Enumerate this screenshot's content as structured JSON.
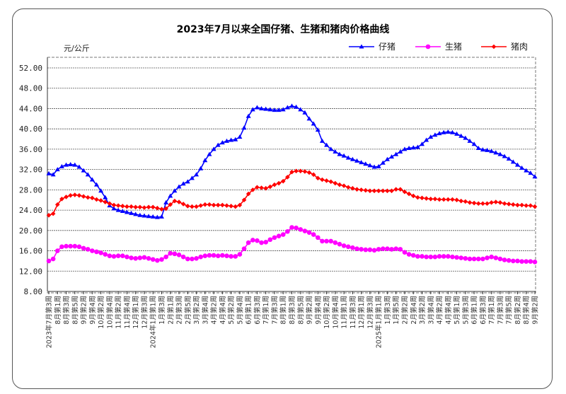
{
  "chart_data": {
    "type": "line",
    "title": "2023年7月以来全国仔猪、生猪和猪肉价格曲线",
    "ylabel": "元/公斤",
    "xlabel": "",
    "ylim": [
      8,
      52
    ],
    "yticks": [
      "8.00",
      "12.00",
      "16.00",
      "20.00",
      "24.00",
      "28.00",
      "32.00",
      "36.00",
      "40.00",
      "44.00",
      "48.00",
      "52.00"
    ],
    "grid": true,
    "legend_position": "top-right",
    "x_tick_labels": [
      "2023年7月第3周",
      "8月第1周",
      "8月第3周",
      "8月第5周",
      "9月第2周",
      "9月第4周",
      "10月第2周",
      "10月第4周",
      "11月第2周",
      "11月第4周",
      "12月第1周",
      "12月第3周",
      "2024年1月第1周",
      "1月第3周",
      "2月第1周",
      "2月第3周",
      "2月第5周",
      "3月第2周",
      "3月第4周",
      "4月第2周",
      "4月第4周",
      "5月第2周",
      "5月第4周",
      "6月第1周",
      "6月第3周",
      "7月第1周",
      "7月第3周",
      "8月第1周",
      "8月第3周",
      "8月第5周",
      "9月第2周",
      "9月第4周",
      "10月第2周",
      "10月第4周",
      "11月第1周",
      "11月第3周",
      "12月第1周",
      "12月第3周",
      "2025年1月第1周",
      "1月第3周",
      "1月第5周",
      "2月第2周",
      "2月第4周",
      "3月第2周",
      "3月第4周",
      "4月第2周",
      "4月第4周",
      "5月第1周",
      "5月第3周",
      "6月第1周",
      "6月第3周",
      "7月第1周",
      "7月第3周",
      "7月第5周",
      "8月第2周",
      "8月第4周",
      "9月第2周"
    ],
    "weeks_per_tick_label": 2,
    "series": [
      {
        "name": "仔猪",
        "color": "#0000ff",
        "marker": "triangle",
        "values": [
          31.2,
          31.0,
          32.0,
          32.6,
          32.9,
          33.0,
          32.9,
          32.5,
          31.8,
          31.0,
          30.0,
          29.0,
          27.8,
          26.5,
          24.9,
          24.3,
          24.0,
          23.8,
          23.6,
          23.4,
          23.2,
          23.0,
          22.9,
          22.8,
          22.7,
          22.6,
          22.7,
          25.5,
          26.8,
          27.8,
          28.6,
          29.2,
          29.6,
          30.3,
          31.0,
          32.2,
          33.8,
          35.0,
          36.0,
          36.8,
          37.3,
          37.6,
          37.8,
          37.9,
          38.4,
          40.2,
          42.5,
          43.8,
          44.2,
          44.0,
          43.9,
          43.8,
          43.7,
          43.7,
          43.8,
          44.2,
          44.5,
          44.3,
          43.8,
          43.2,
          42.0,
          41.0,
          39.8,
          37.6,
          36.8,
          36.0,
          35.5,
          35.0,
          34.7,
          34.3,
          34.0,
          33.7,
          33.4,
          33.1,
          32.8,
          32.5,
          32.6,
          33.3,
          34.0,
          34.5,
          35.0,
          35.5,
          36.0,
          36.2,
          36.3,
          36.4,
          37.0,
          37.8,
          38.4,
          38.8,
          39.1,
          39.3,
          39.4,
          39.3,
          39.0,
          38.6,
          38.2,
          37.6,
          37.0,
          36.2,
          35.9,
          35.8,
          35.6,
          35.3,
          35.0,
          34.6,
          34.1,
          33.5,
          32.9,
          32.3,
          31.8,
          31.3,
          30.6
        ]
      },
      {
        "name": "生猪",
        "color": "#ff00ff",
        "marker": "circle",
        "values": [
          14.0,
          14.4,
          16.0,
          16.8,
          16.9,
          16.9,
          16.9,
          16.8,
          16.5,
          16.3,
          16.0,
          15.8,
          15.6,
          15.3,
          15.0,
          14.9,
          15.0,
          15.0,
          14.8,
          14.6,
          14.5,
          14.6,
          14.7,
          14.5,
          14.3,
          14.1,
          14.3,
          14.8,
          15.5,
          15.4,
          15.2,
          14.8,
          14.4,
          14.4,
          14.5,
          14.8,
          15.0,
          15.1,
          15.1,
          15.0,
          15.1,
          15.0,
          14.9,
          14.9,
          15.3,
          16.4,
          17.6,
          18.1,
          18.0,
          17.6,
          17.7,
          18.2,
          18.6,
          18.9,
          19.2,
          19.8,
          20.6,
          20.5,
          20.2,
          19.9,
          19.6,
          19.2,
          18.6,
          17.9,
          17.9,
          17.9,
          17.6,
          17.3,
          17.0,
          16.8,
          16.6,
          16.4,
          16.3,
          16.2,
          16.2,
          16.1,
          16.3,
          16.4,
          16.4,
          16.3,
          16.4,
          16.3,
          15.7,
          15.3,
          15.1,
          14.9,
          14.9,
          14.8,
          14.8,
          14.8,
          14.9,
          14.9,
          14.9,
          14.8,
          14.7,
          14.6,
          14.5,
          14.4,
          14.4,
          14.4,
          14.4,
          14.6,
          14.8,
          14.6,
          14.4,
          14.2,
          14.1,
          14.0,
          14.0,
          13.9,
          13.9,
          13.9,
          13.8
        ]
      },
      {
        "name": "猪肉",
        "color": "#ff0000",
        "marker": "diamond",
        "values": [
          23.0,
          23.3,
          25.1,
          26.2,
          26.6,
          26.9,
          27.0,
          26.9,
          26.7,
          26.5,
          26.4,
          26.1,
          25.9,
          25.6,
          25.3,
          25.0,
          24.9,
          24.8,
          24.7,
          24.7,
          24.6,
          24.6,
          24.5,
          24.6,
          24.6,
          24.4,
          24.2,
          24.3,
          25.1,
          25.8,
          25.6,
          25.2,
          24.8,
          24.7,
          24.7,
          24.9,
          25.1,
          25.1,
          25.0,
          25.0,
          25.0,
          24.9,
          24.8,
          24.7,
          25.0,
          26.0,
          27.2,
          28.0,
          28.5,
          28.4,
          28.3,
          28.6,
          29.0,
          29.3,
          29.7,
          30.5,
          31.5,
          31.7,
          31.7,
          31.6,
          31.4,
          31.0,
          30.3,
          30.0,
          29.8,
          29.6,
          29.3,
          29.0,
          28.8,
          28.5,
          28.3,
          28.1,
          28.0,
          27.9,
          27.8,
          27.8,
          27.8,
          27.8,
          27.8,
          27.8,
          28.1,
          28.1,
          27.6,
          27.2,
          26.8,
          26.5,
          26.4,
          26.3,
          26.2,
          26.2,
          26.1,
          26.1,
          26.1,
          26.1,
          26.0,
          25.8,
          25.7,
          25.5,
          25.4,
          25.3,
          25.3,
          25.3,
          25.5,
          25.6,
          25.5,
          25.3,
          25.2,
          25.1,
          25.0,
          25.0,
          24.9,
          24.9,
          24.7
        ]
      }
    ]
  }
}
